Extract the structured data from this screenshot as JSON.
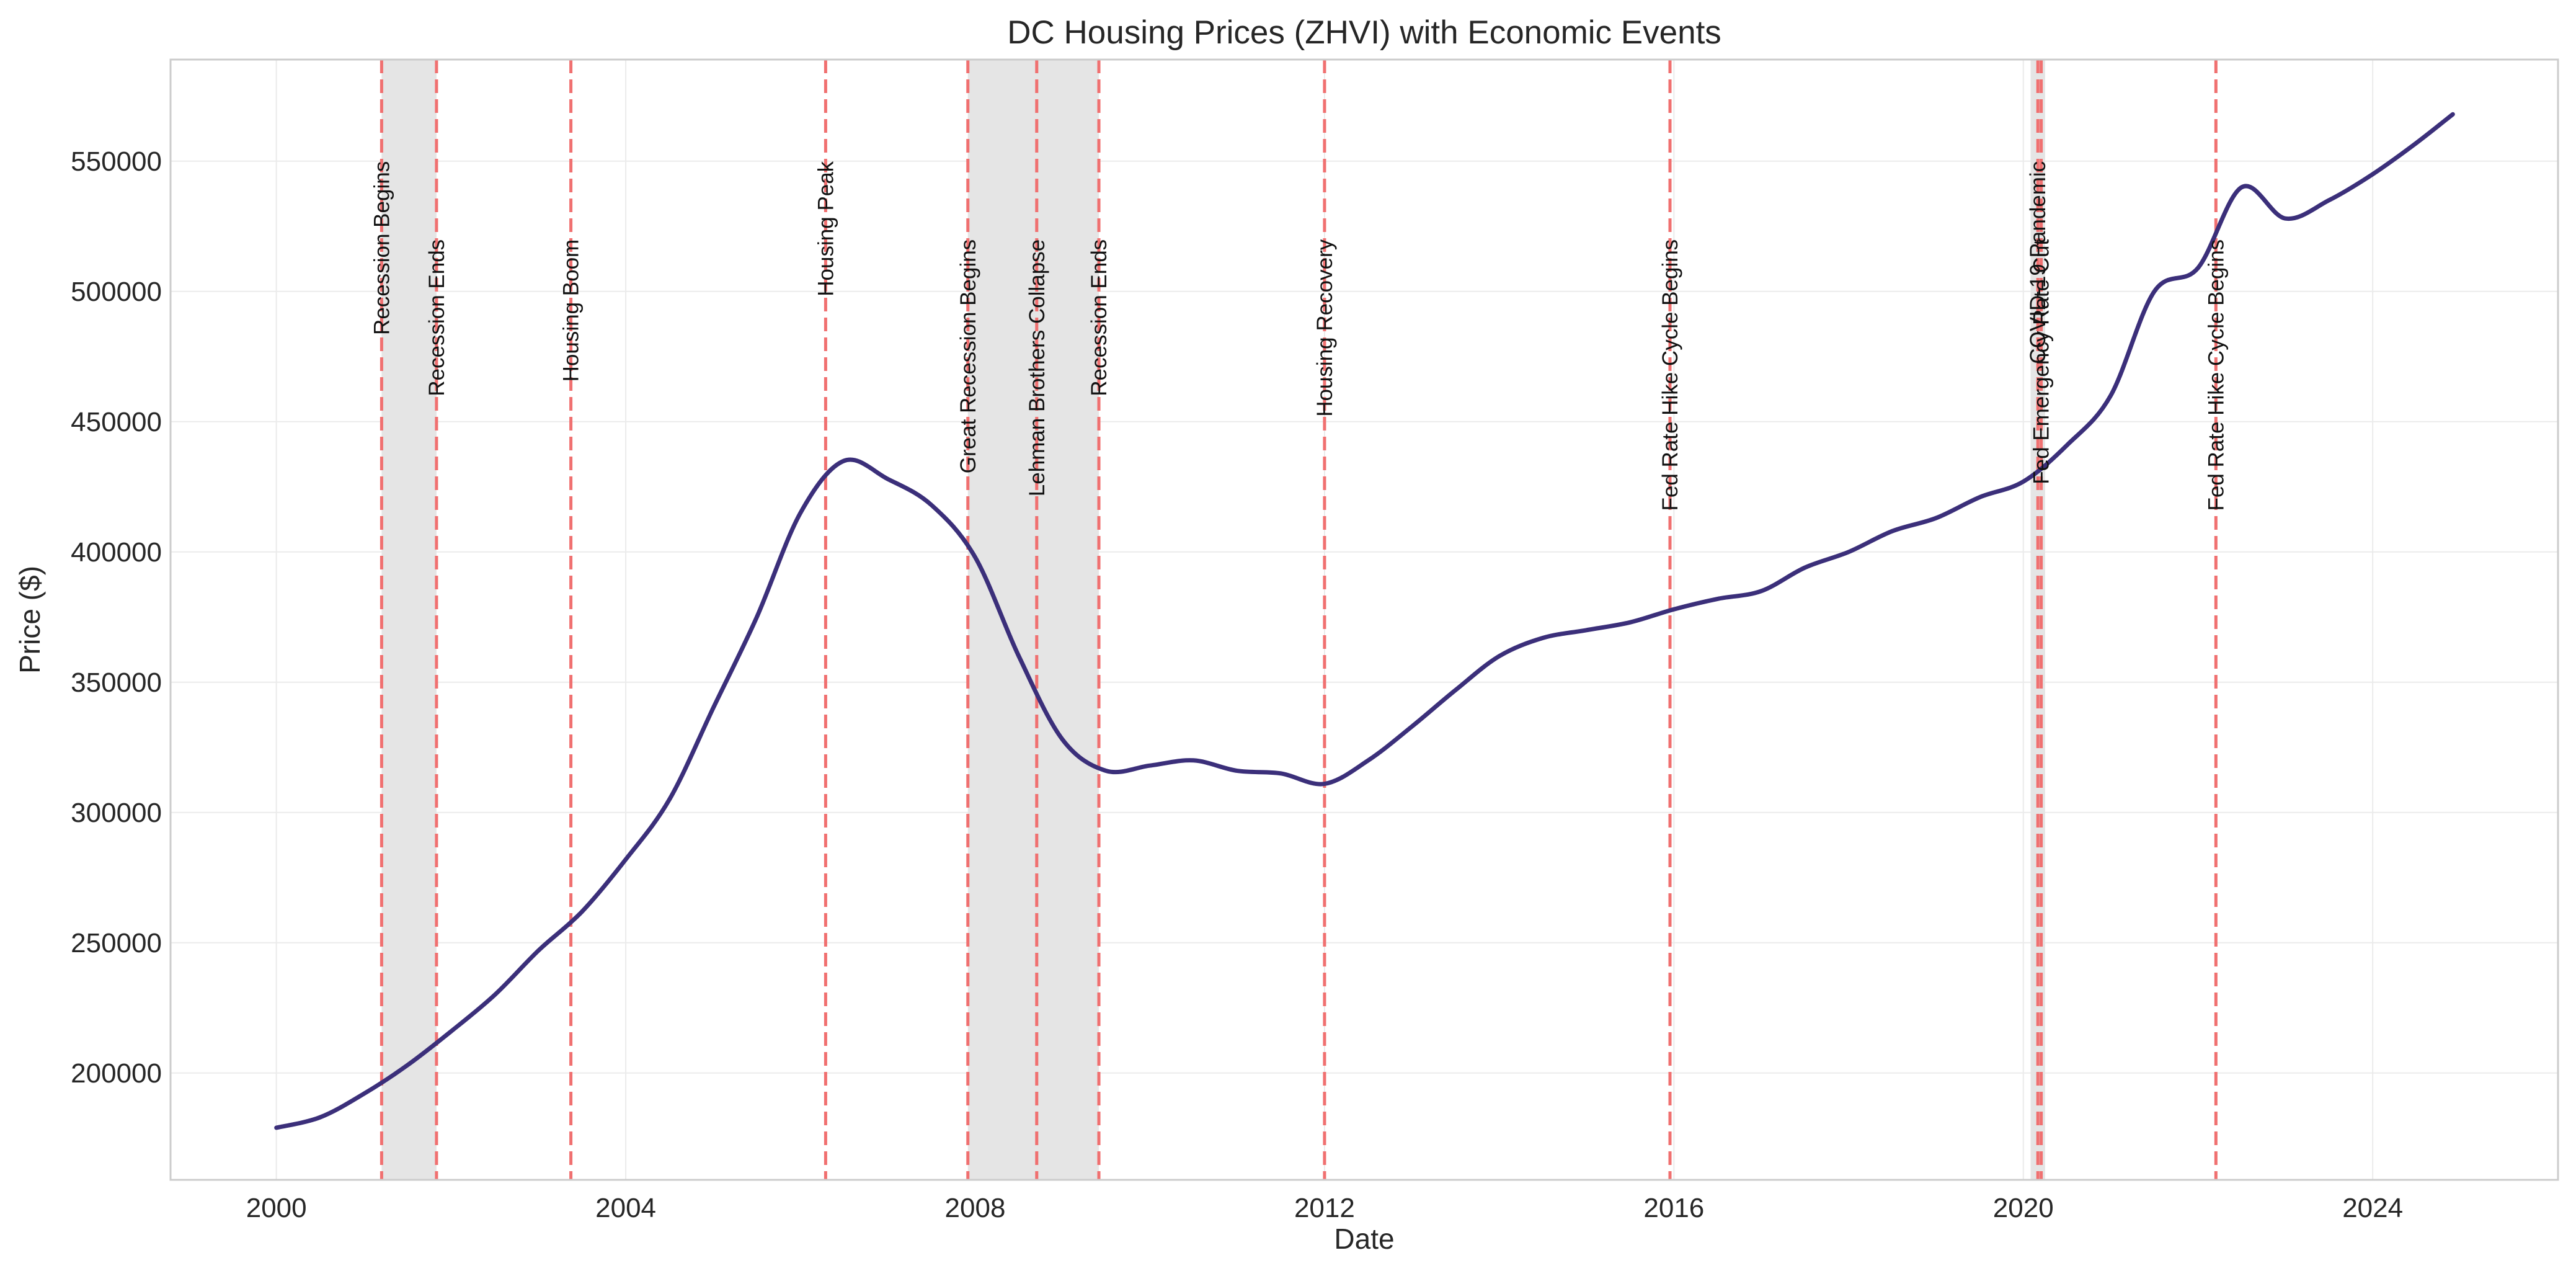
{
  "chart_data": {
    "type": "line",
    "title": "DC Housing Prices (ZHVI) with Economic Events",
    "xlabel": "Date",
    "ylabel": "Price ($)",
    "xlim": [
      "1998-10-15",
      "2026-02-15"
    ],
    "ylim": [
      159000,
      589000
    ],
    "x_ticks": [
      "2000",
      "2004",
      "2008",
      "2012",
      "2016",
      "2020",
      "2024"
    ],
    "y_ticks": [
      200000,
      250000,
      300000,
      350000,
      400000,
      450000,
      500000,
      550000
    ],
    "grid": true,
    "colors": {
      "line": "#3b2f7a",
      "event_line": "#f07070",
      "shade": "#e5e5e5",
      "grid": "#ebebeb",
      "frame": "#cccccc"
    },
    "series": [
      {
        "x": [
          "2000-01",
          "2000-07",
          "2001-01",
          "2001-07",
          "2002-01",
          "2002-07",
          "2003-01",
          "2003-07",
          "2004-01",
          "2004-07",
          "2005-01",
          "2005-07",
          "2006-01",
          "2006-07",
          "2007-01",
          "2007-07",
          "2008-01",
          "2008-07",
          "2009-01",
          "2009-07",
          "2010-01",
          "2010-07",
          "2011-01",
          "2011-07",
          "2012-01",
          "2012-07",
          "2013-01",
          "2013-07",
          "2014-01",
          "2014-07",
          "2015-01",
          "2015-07",
          "2016-01",
          "2016-07",
          "2017-01",
          "2017-07",
          "2018-01",
          "2018-07",
          "2019-01",
          "2019-07",
          "2020-01",
          "2020-07",
          "2021-01",
          "2021-07",
          "2022-01",
          "2022-07",
          "2023-01",
          "2023-07",
          "2024-01",
          "2024-07",
          "2024-12"
        ],
        "values": [
          179000,
          183000,
          192000,
          203000,
          216000,
          230000,
          247000,
          262000,
          282000,
          305000,
          340000,
          375000,
          415000,
          435000,
          428000,
          418000,
          398000,
          360000,
          328000,
          316000,
          318000,
          320000,
          316000,
          315000,
          311000,
          320000,
          333000,
          347000,
          360000,
          367000,
          370000,
          373000,
          378000,
          382000,
          385000,
          394000,
          400000,
          408000,
          413000,
          421000,
          427000,
          441000,
          460000,
          500000,
          509000,
          540000,
          528000,
          535000,
          545000,
          557000,
          568000
        ]
      }
    ],
    "events": [
      {
        "date": "2001-03-15",
        "label": "Recession Begins",
        "label_anchor": 550000
      },
      {
        "date": "2001-11-01",
        "label": "Recession Ends",
        "label_anchor": 520000
      },
      {
        "date": "2003-05-15",
        "label": "Housing Boom",
        "label_anchor": 520000
      },
      {
        "date": "2006-04-15",
        "label": "Housing Peak",
        "label_anchor": 550000
      },
      {
        "date": "2007-12-01",
        "label": "Great Recession Begins",
        "label_anchor": 520000
      },
      {
        "date": "2008-09-15",
        "label": "Lehman Brothers Collapse",
        "label_anchor": 520000
      },
      {
        "date": "2009-06-01",
        "label": "Recession Ends",
        "label_anchor": 520000
      },
      {
        "date": "2012-01-01",
        "label": "Housing Recovery",
        "label_anchor": 520000
      },
      {
        "date": "2015-12-15",
        "label": "Fed Rate Hike Cycle Begins",
        "label_anchor": 520000
      },
      {
        "date": "2020-03-01",
        "label": "COVID-19 Pandemic",
        "label_anchor": 550000
      },
      {
        "date": "2020-03-15",
        "label": "Fed Emergency Rate Cut",
        "label_anchor": 520000
      },
      {
        "date": "2022-03-15",
        "label": "Fed Rate Hike Cycle Begins",
        "label_anchor": 520000
      }
    ],
    "recession_shading": [
      {
        "start": "2001-03-15",
        "end": "2001-11-01"
      },
      {
        "start": "2007-12-01",
        "end": "2009-06-01"
      },
      {
        "start": "2020-02-01",
        "end": "2020-04-01"
      }
    ]
  }
}
